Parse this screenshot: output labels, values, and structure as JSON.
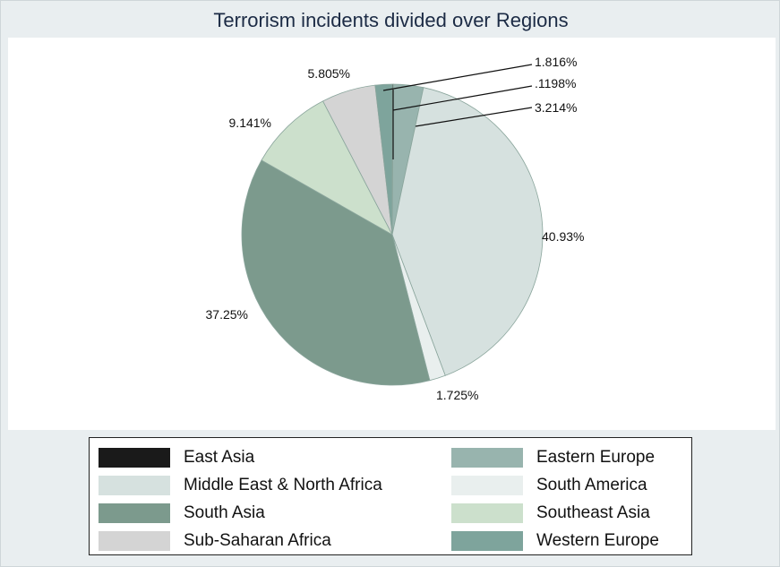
{
  "chart_data": {
    "type": "pie",
    "title": "Terrorism incidents divided over Regions",
    "slices": [
      {
        "label": "East Asia",
        "value": 0.1198,
        "display": ".1198%",
        "color": "#1a1a1a"
      },
      {
        "label": "Eastern Europe",
        "value": 3.214,
        "display": "3.214%",
        "color": "#98b4ae"
      },
      {
        "label": "Middle East & North Africa",
        "value": 40.93,
        "display": "40.93%",
        "color": "#d6e1df"
      },
      {
        "label": "South America",
        "value": 1.725,
        "display": "1.725%",
        "color": "#e9efee"
      },
      {
        "label": "South Asia",
        "value": 37.25,
        "display": "37.25%",
        "color": "#7c9a8d"
      },
      {
        "label": "Southeast Asia",
        "value": 9.141,
        "display": "9.141%",
        "color": "#cce0cc"
      },
      {
        "label": "Sub-Saharan Africa",
        "value": 5.805,
        "display": "5.805%",
        "color": "#d4d4d4"
      },
      {
        "label": "Western Europe",
        "value": 1.816,
        "display": "1.816%",
        "color": "#7ea49c"
      }
    ],
    "legend": {
      "placement": "bottom",
      "columns": [
        [
          "East Asia",
          "Middle East & North Africa",
          "South Asia",
          "Sub-Saharan Africa"
        ],
        [
          "Eastern Europe",
          "South America",
          "Southeast Asia",
          "Western Europe"
        ]
      ]
    }
  }
}
